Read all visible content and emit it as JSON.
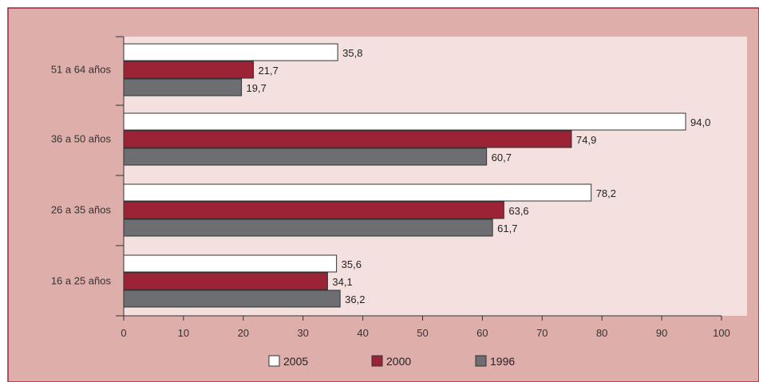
{
  "chart_data": {
    "type": "bar",
    "orientation": "horizontal",
    "title": "",
    "xlabel": "",
    "ylabel": "",
    "categories": [
      "51 a 64 años",
      "36 a 50 años",
      "26 a 35 años",
      "16 a 25 años"
    ],
    "series": [
      {
        "name": "2005",
        "values": [
          35.8,
          94.0,
          78.2,
          35.6
        ],
        "labels": [
          "35,8",
          "94,0",
          "78,2",
          "35,6"
        ],
        "color": "#ffffff"
      },
      {
        "name": "2000",
        "values": [
          21.7,
          74.9,
          63.6,
          34.1
        ],
        "labels": [
          "21,7",
          "74,9",
          "63,6",
          "34,1"
        ],
        "color": "#9b2335"
      },
      {
        "name": "1996",
        "values": [
          19.7,
          60.7,
          61.7,
          36.2
        ],
        "labels": [
          "19,7",
          "60,7",
          "61,7",
          "36,2"
        ],
        "color": "#6d6e71"
      }
    ],
    "xlim": [
      0,
      100
    ],
    "xticks": [
      "0",
      "10",
      "20",
      "30",
      "40",
      "50",
      "60",
      "70",
      "80",
      "90",
      "100"
    ],
    "grid": false,
    "legend_position": "bottom",
    "colors": {
      "outer_background": "#deaeaa",
      "plot_background": "#f4e1df",
      "frame_border": "#9b2335"
    }
  }
}
